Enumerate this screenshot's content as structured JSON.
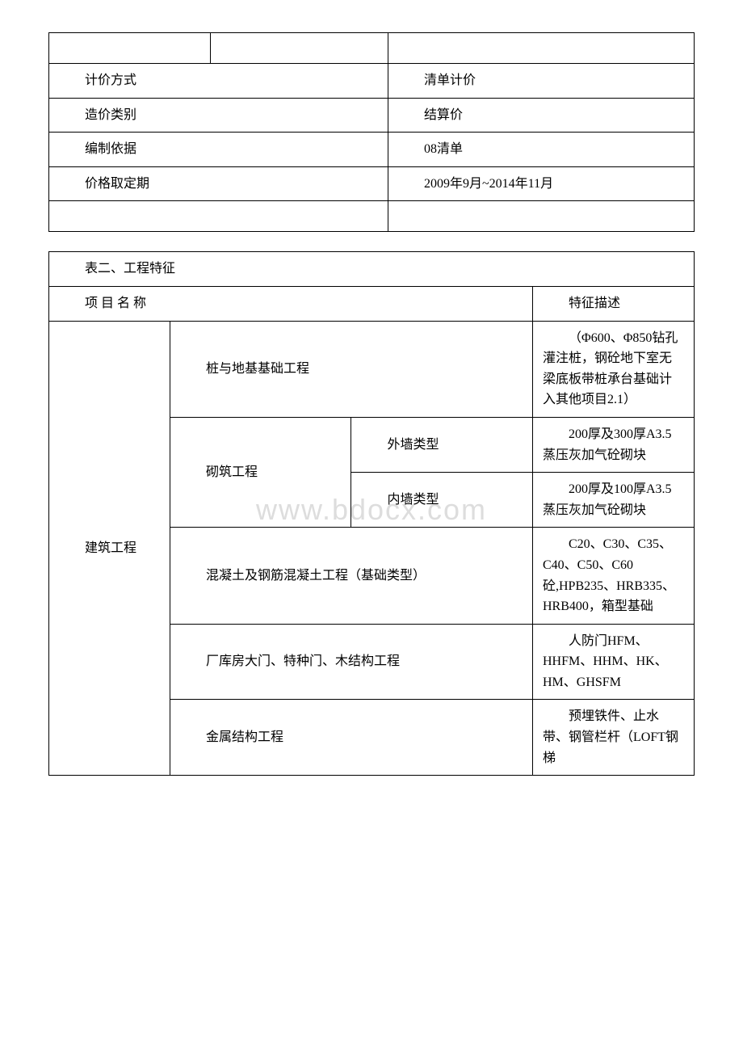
{
  "table1": {
    "rows": [
      {
        "label": "",
        "value": ""
      },
      {
        "label": "计价方式",
        "value": "清单计价"
      },
      {
        "label": "造价类别",
        "value": "结算价"
      },
      {
        "label": "编制依据",
        "value": "08清单"
      },
      {
        "label": "价格取定期",
        "value": "2009年9月~2014年11月"
      },
      {
        "label": "",
        "value": ""
      }
    ],
    "colors": {
      "border": "#000000",
      "background": "#ffffff",
      "text": "#000000"
    }
  },
  "table2": {
    "title": "表二、工程特征",
    "header": {
      "col1": "项 目 名 称",
      "col2": "特征描述"
    },
    "category_label": "建筑工程",
    "rows": [
      {
        "item": "桩与地基基础工程",
        "desc": "（Φ600、Φ850钻孔灌注桩，钢砼地下室无梁底板带桩承台基础计入其他项目2.1）"
      },
      {
        "item_group": "砌筑工程",
        "sub1_label": "外墙类型",
        "sub1_desc": "200厚及300厚A3.5蒸压灰加气砼砌块",
        "sub2_label": "内墙类型",
        "sub2_desc": "200厚及100厚A3.5蒸压灰加气砼砌块"
      },
      {
        "item": "混凝土及钢筋混凝土工程（基础类型）",
        "desc": "C20、C30、C35、C40、C50、C60砼,HPB235、HRB335、HRB400，箱型基础"
      },
      {
        "item": "厂库房大门、特种门、木结构工程",
        "desc": "人防门HFM、HHFM、HHM、HK、HM、GHSFM"
      },
      {
        "item": "金属结构工程",
        "desc": "预埋铁件、止水带、钢管栏杆（LOFT钢梯"
      }
    ],
    "colors": {
      "border": "#000000",
      "background": "#ffffff",
      "text": "#000000"
    }
  },
  "watermark": {
    "text": "www.bdocx.com",
    "color": "#dddddd",
    "fontsize": 36
  }
}
